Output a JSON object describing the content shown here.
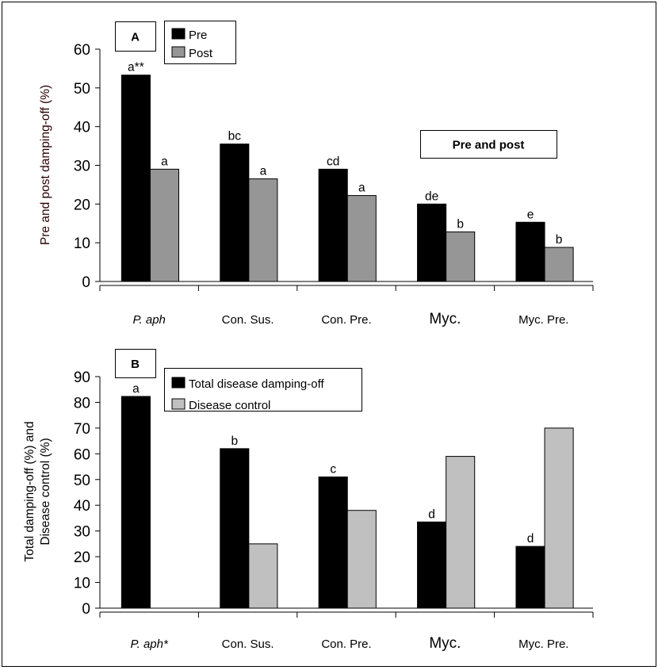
{
  "chart_data": [
    {
      "type": "bar",
      "panel_label": "A",
      "annotation_box": "Pre and post",
      "ylabel": "Pre and post damping-off (%)",
      "xlabel": "",
      "ylim": [
        0,
        60
      ],
      "yticks": [
        "0",
        "10",
        "20",
        "30",
        "40",
        "50",
        "60"
      ],
      "categories": [
        "P. aph",
        "Con. Sus.",
        "Con. Pre.",
        "Myc.",
        "Myc. Pre."
      ],
      "legend_position": "top-left",
      "grid": false,
      "series": [
        {
          "name": "Pre",
          "color": "#000000",
          "values": [
            53.3,
            35.5,
            29,
            20,
            15.3
          ],
          "labels": [
            "a**",
            "bc",
            "cd",
            "de",
            "e"
          ]
        },
        {
          "name": "Post",
          "color": "#969696",
          "values": [
            29,
            26.5,
            22.2,
            12.8,
            8.8
          ],
          "labels": [
            "a",
            "a",
            "a",
            "b",
            "b"
          ]
        }
      ]
    },
    {
      "type": "bar",
      "panel_label": "B",
      "ylabel": "Total damping-off (%) and Disease control (%)",
      "ylabel_lines": [
        "Total damping-off (%) and",
        "Disease control (%)"
      ],
      "xlabel": "",
      "ylim": [
        0,
        90
      ],
      "yticks": [
        "0",
        "10",
        "20",
        "30",
        "40",
        "50",
        "60",
        "70",
        "80",
        "90"
      ],
      "categories": [
        "P. aph*",
        "Con. Sus.",
        "Con. Pre.",
        "Myc.",
        "Myc. Pre."
      ],
      "legend_position": "top-left",
      "grid": false,
      "series": [
        {
          "name": "Total disease damping-off",
          "color": "#000000",
          "values": [
            82.3,
            62,
            51,
            33.5,
            24
          ],
          "labels": [
            "a",
            "b",
            "c",
            "d",
            "d"
          ]
        },
        {
          "name": "Disease control",
          "color": "#c0c0c0",
          "values": [
            0,
            25,
            38,
            59,
            70
          ],
          "labels": [
            "",
            "",
            "",
            "",
            ""
          ]
        }
      ]
    }
  ]
}
